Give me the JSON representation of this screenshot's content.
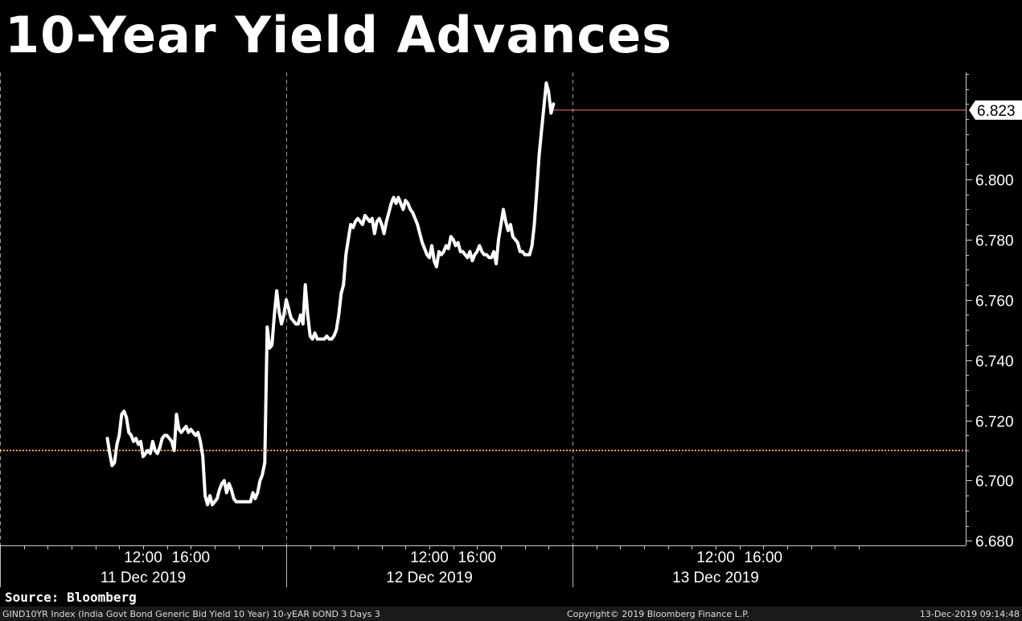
{
  "chart_data": {
    "type": "line",
    "title": "10-Year Yield Advances",
    "ylim": [
      6.678,
      6.84
    ],
    "y_ticks": [
      "6.680",
      "6.700",
      "6.720",
      "6.740",
      "6.760",
      "6.780",
      "6.800"
    ],
    "x_range_hours": [
      0,
      72
    ],
    "time_ticks": [
      {
        "t": 12,
        "label": "12:00"
      },
      {
        "t": 16,
        "label": "16:00"
      },
      {
        "t": 36,
        "label": "12:00"
      },
      {
        "t": 40,
        "label": "16:00"
      },
      {
        "t": 60,
        "label": "12:00"
      },
      {
        "t": 64,
        "label": "16:00"
      }
    ],
    "day_labels": [
      {
        "t": 12,
        "label": "11 Dec 2019"
      },
      {
        "t": 36,
        "label": "12 Dec 2019"
      },
      {
        "t": 60,
        "label": "13 Dec 2019"
      }
    ],
    "day_separators": [
      0,
      24,
      48
    ],
    "reference_line": 6.71,
    "last_value": 6.823,
    "last_value_label": "6.823",
    "series": [
      {
        "values": [
          [
            9.0,
            6.714
          ],
          [
            9.2,
            6.709
          ],
          [
            9.4,
            6.705
          ],
          [
            9.6,
            6.706
          ],
          [
            9.8,
            6.712
          ],
          [
            10.0,
            6.715
          ],
          [
            10.2,
            6.722
          ],
          [
            10.4,
            6.723
          ],
          [
            10.6,
            6.721
          ],
          [
            10.8,
            6.716
          ],
          [
            11.0,
            6.715
          ],
          [
            11.2,
            6.713
          ],
          [
            11.4,
            6.714
          ],
          [
            11.6,
            6.712
          ],
          [
            11.8,
            6.713
          ],
          [
            12.0,
            6.708
          ],
          [
            12.2,
            6.709
          ],
          [
            12.4,
            6.71
          ],
          [
            12.6,
            6.709
          ],
          [
            12.8,
            6.713
          ],
          [
            13.0,
            6.71
          ],
          [
            13.2,
            6.709
          ],
          [
            13.4,
            6.711
          ],
          [
            13.6,
            6.714
          ],
          [
            13.8,
            6.715
          ],
          [
            14.0,
            6.715
          ],
          [
            14.2,
            6.714
          ],
          [
            14.4,
            6.713
          ],
          [
            14.6,
            6.71
          ],
          [
            14.8,
            6.722
          ],
          [
            15.0,
            6.717
          ],
          [
            15.2,
            6.716
          ],
          [
            15.4,
            6.717
          ],
          [
            15.6,
            6.718
          ],
          [
            15.8,
            6.716
          ],
          [
            16.0,
            6.717
          ],
          [
            16.2,
            6.716
          ],
          [
            16.4,
            6.715
          ],
          [
            16.6,
            6.716
          ],
          [
            16.8,
            6.713
          ],
          [
            17.0,
            6.708
          ],
          [
            17.2,
            6.695
          ],
          [
            17.4,
            6.692
          ],
          [
            17.6,
            6.695
          ],
          [
            17.8,
            6.692
          ],
          [
            18.0,
            6.693
          ],
          [
            18.2,
            6.694
          ],
          [
            18.4,
            6.697
          ],
          [
            18.6,
            6.699
          ],
          [
            18.8,
            6.7
          ],
          [
            19.0,
            6.696
          ],
          [
            19.2,
            6.699
          ],
          [
            19.4,
            6.697
          ],
          [
            19.6,
            6.694
          ],
          [
            19.8,
            6.693
          ],
          [
            20.0,
            6.693
          ],
          [
            20.2,
            6.693
          ],
          [
            20.4,
            6.693
          ],
          [
            20.6,
            6.693
          ],
          [
            20.8,
            6.693
          ],
          [
            21.0,
            6.693
          ],
          [
            21.2,
            6.696
          ],
          [
            21.4,
            6.694
          ],
          [
            21.6,
            6.696
          ],
          [
            21.8,
            6.7
          ],
          [
            22.0,
            6.702
          ],
          [
            22.2,
            6.706
          ],
          [
            22.4,
            6.751
          ],
          [
            22.6,
            6.744
          ],
          [
            22.8,
            6.745
          ],
          [
            23.0,
            6.755
          ],
          [
            23.2,
            6.763
          ],
          [
            23.4,
            6.756
          ],
          [
            23.6,
            6.752
          ],
          [
            23.8,
            6.755
          ],
          [
            24.0,
            6.76
          ],
          [
            24.2,
            6.757
          ],
          [
            24.4,
            6.754
          ],
          [
            24.6,
            6.753
          ],
          [
            24.8,
            6.752
          ],
          [
            25.0,
            6.752
          ],
          [
            25.2,
            6.755
          ],
          [
            25.4,
            6.752
          ],
          [
            25.6,
            6.765
          ],
          [
            25.8,
            6.755
          ],
          [
            26.0,
            6.748
          ],
          [
            26.2,
            6.747
          ],
          [
            26.4,
            6.749
          ],
          [
            26.6,
            6.747
          ],
          [
            26.8,
            6.747
          ],
          [
            27.0,
            6.747
          ],
          [
            27.2,
            6.747
          ],
          [
            27.4,
            6.748
          ],
          [
            27.6,
            6.747
          ],
          [
            27.8,
            6.747
          ],
          [
            28.0,
            6.748
          ],
          [
            28.2,
            6.75
          ],
          [
            28.4,
            6.755
          ],
          [
            28.6,
            6.762
          ],
          [
            28.8,
            6.765
          ],
          [
            29.0,
            6.775
          ],
          [
            29.2,
            6.78
          ],
          [
            29.4,
            6.785
          ],
          [
            29.6,
            6.784
          ],
          [
            29.8,
            6.786
          ],
          [
            30.0,
            6.787
          ],
          [
            30.2,
            6.786
          ],
          [
            30.4,
            6.785
          ],
          [
            30.6,
            6.788
          ],
          [
            30.8,
            6.787
          ],
          [
            31.0,
            6.786
          ],
          [
            31.2,
            6.787
          ],
          [
            31.4,
            6.782
          ],
          [
            31.6,
            6.786
          ],
          [
            31.8,
            6.787
          ],
          [
            32.0,
            6.785
          ],
          [
            32.2,
            6.782
          ],
          [
            32.4,
            6.786
          ],
          [
            32.6,
            6.789
          ],
          [
            32.8,
            6.792
          ],
          [
            33.0,
            6.794
          ],
          [
            33.2,
            6.792
          ],
          [
            33.4,
            6.794
          ],
          [
            33.6,
            6.792
          ],
          [
            33.8,
            6.79
          ],
          [
            34.0,
            6.793
          ],
          [
            34.2,
            6.792
          ],
          [
            34.4,
            6.79
          ],
          [
            34.6,
            6.789
          ],
          [
            34.8,
            6.787
          ],
          [
            35.0,
            6.785
          ],
          [
            35.2,
            6.782
          ],
          [
            35.4,
            6.779
          ],
          [
            35.6,
            6.777
          ],
          [
            35.8,
            6.775
          ],
          [
            36.0,
            6.774
          ],
          [
            36.2,
            6.778
          ],
          [
            36.4,
            6.773
          ],
          [
            36.6,
            6.771
          ],
          [
            36.8,
            6.776
          ],
          [
            37.0,
            6.775
          ],
          [
            37.2,
            6.776
          ],
          [
            37.4,
            6.778
          ],
          [
            37.6,
            6.777
          ],
          [
            37.8,
            6.781
          ],
          [
            38.0,
            6.78
          ],
          [
            38.2,
            6.778
          ],
          [
            38.4,
            6.779
          ],
          [
            38.6,
            6.776
          ],
          [
            38.8,
            6.776
          ],
          [
            39.0,
            6.775
          ],
          [
            39.2,
            6.774
          ],
          [
            39.4,
            6.776
          ],
          [
            39.6,
            6.773
          ],
          [
            39.8,
            6.775
          ],
          [
            40.0,
            6.776
          ],
          [
            40.2,
            6.778
          ],
          [
            40.4,
            6.776
          ],
          [
            40.6,
            6.775
          ],
          [
            40.8,
            6.775
          ],
          [
            41.0,
            6.774
          ],
          [
            41.2,
            6.774
          ],
          [
            41.4,
            6.776
          ],
          [
            41.6,
            6.772
          ],
          [
            41.8,
            6.78
          ],
          [
            42.0,
            6.785
          ],
          [
            42.2,
            6.79
          ],
          [
            42.4,
            6.786
          ],
          [
            42.6,
            6.783
          ],
          [
            42.8,
            6.785
          ],
          [
            43.0,
            6.781
          ],
          [
            43.2,
            6.78
          ],
          [
            43.4,
            6.779
          ],
          [
            43.6,
            6.776
          ],
          [
            43.8,
            6.776
          ],
          [
            44.0,
            6.775
          ],
          [
            44.2,
            6.775
          ],
          [
            44.4,
            6.775
          ],
          [
            44.6,
            6.778
          ],
          [
            44.8,
            6.785
          ],
          [
            45.0,
            6.796
          ],
          [
            45.2,
            6.808
          ],
          [
            45.4,
            6.816
          ],
          [
            45.6,
            6.824
          ],
          [
            45.8,
            6.832
          ],
          [
            46.0,
            6.829
          ],
          [
            46.2,
            6.822
          ],
          [
            46.4,
            6.825
          ]
        ]
      }
    ]
  },
  "source": "Source: Bloomberg",
  "footer": {
    "left": "GIND10YR Index (India Govt Bond Generic Bid Yield 10 Year) 10-yEAR bOND 3 Days 3",
    "center": "Copyright© 2019 Bloomberg Finance L.P.",
    "right": "13-Dec-2019 09:14:48"
  },
  "colors": {
    "line": "#ffffff",
    "reference": "#f5a040",
    "last_value_line": "#f08060",
    "badge_bg": "#ffffff",
    "badge_text": "#000000"
  }
}
